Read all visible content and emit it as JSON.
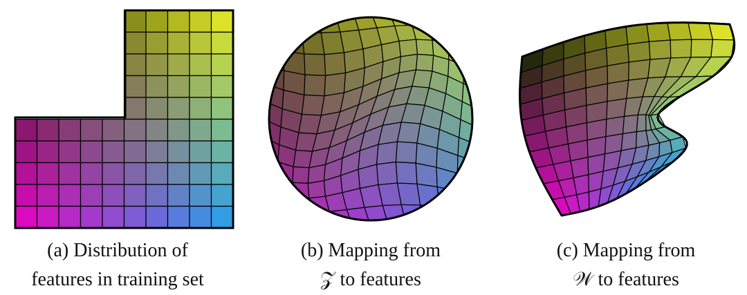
{
  "panels": [
    {
      "id": "a",
      "shape": "L-shaped grid",
      "caption_line1": "(a) Distribution of",
      "caption_line2": "features in training set"
    },
    {
      "id": "b",
      "shape": "warped grid in circle",
      "caption_line1": "(b) Mapping from",
      "caption_line2": "𝒵 to features"
    },
    {
      "id": "c",
      "shape": "warped blob grid",
      "caption_line1": "(c) Mapping from",
      "caption_line2": "𝒲 to features"
    }
  ],
  "colors": {
    "corner_top_left": "#102000",
    "corner_top_right": "#f0f01e",
    "corner_bottom_left": "#f000c8",
    "corner_bottom_right": "#1ea0f0",
    "grid_line": "#000000"
  }
}
